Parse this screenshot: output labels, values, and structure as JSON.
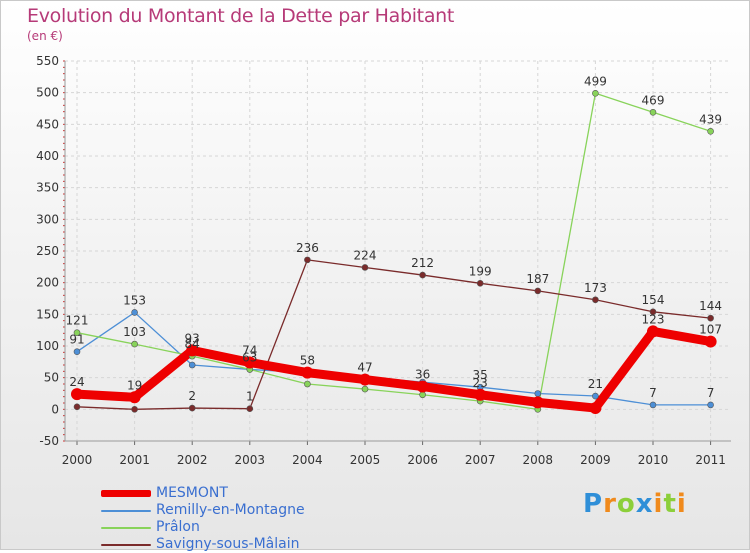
{
  "title": "Evolution du Montant de la Dette par Habitant",
  "unit_label": "(en €)",
  "brand": {
    "text": "Proxiti",
    "colors": [
      "#2f8fd8",
      "#f08a1c",
      "#8ccf3a",
      "#2f8fd8",
      "#f08a1c",
      "#8ccf3a",
      "#f08a1c"
    ]
  },
  "chart_data": {
    "type": "line",
    "categories": [
      "2000",
      "2001",
      "2002",
      "2003",
      "2004",
      "2005",
      "2006",
      "2007",
      "2008",
      "2009",
      "2010",
      "2011"
    ],
    "ylim": [
      -50,
      550
    ],
    "yticks": [
      -50,
      0,
      50,
      100,
      150,
      200,
      250,
      300,
      350,
      400,
      450,
      500,
      550
    ],
    "grid": true,
    "legend_placement": "bottom-left",
    "series": [
      {
        "name": "MESMONT",
        "color": "#ee0000",
        "emphasis": true,
        "values": [
          24,
          19,
          93,
          74,
          58,
          47,
          36,
          23,
          11,
          2,
          123,
          107
        ],
        "labels": [
          "24",
          "19",
          "93",
          "74",
          "58",
          "47",
          "36",
          "23",
          "",
          "",
          "123",
          "107"
        ]
      },
      {
        "name": "Remilly-en-Montagne",
        "color": "#4d8fd6",
        "values": [
          91,
          153,
          70,
          63,
          58,
          51,
          43,
          35,
          25,
          21,
          7,
          7
        ],
        "labels": [
          "91",
          "153",
          "",
          "",
          "",
          "",
          "",
          "35",
          "",
          "21",
          "7",
          "7"
        ]
      },
      {
        "name": "Prâlon",
        "color": "#88d35a",
        "values": [
          121,
          103,
          84,
          63,
          40,
          32,
          23,
          13,
          0,
          499,
          469,
          439
        ],
        "labels": [
          "121",
          "103",
          "84",
          "63",
          "",
          "",
          "",
          "",
          "",
          "499",
          "469",
          "439"
        ]
      },
      {
        "name": "Savigny-sous-Mâlain",
        "color": "#7a2b2b",
        "values": [
          4,
          0,
          2,
          1,
          236,
          224,
          212,
          199,
          187,
          173,
          154,
          144
        ],
        "labels": [
          "",
          "",
          "2",
          "1",
          "236",
          "224",
          "212",
          "199",
          "187",
          "173",
          "154",
          "144"
        ]
      }
    ]
  }
}
